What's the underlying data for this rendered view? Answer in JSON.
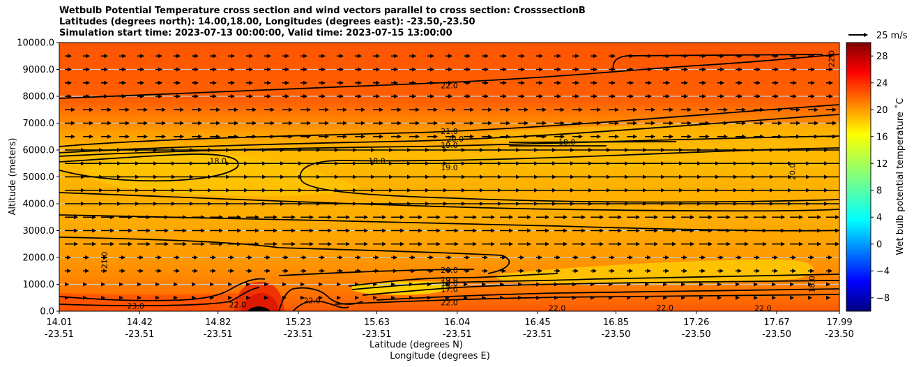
{
  "chart_data": {
    "type": "heatmap",
    "title_lines": [
      "Wetbulb Potential Temperature cross section and wind vectors parallel to cross section: CrosssectionB",
      "Latitudes (degrees north): 14.00,18.00, Longitudes (degrees east): -23.50,-23.50",
      "Simulation start time: 2023-07-13 00:00:00, Valid time: 2023-07-15 13:00:00"
    ],
    "xlabel": "Latitude (degrees N)",
    "xlabel2": "Longitude (degrees E)",
    "ylabel": "Altitude (meters)",
    "ylim": [
      0,
      10000
    ],
    "xlim": [
      14.01,
      17.99
    ],
    "y_ticks": [
      "0.0",
      "1000.0",
      "2000.0",
      "3000.0",
      "4000.0",
      "5000.0",
      "6000.0",
      "7000.0",
      "8000.0",
      "9000.0",
      "10000.0"
    ],
    "y_tick_values": [
      0,
      1000,
      2000,
      3000,
      4000,
      5000,
      6000,
      7000,
      8000,
      9000,
      10000
    ],
    "x_ticks": [
      {
        "lat": "14.01",
        "lon": "-23.51",
        "v": 14.01
      },
      {
        "lat": "14.42",
        "lon": "-23.51",
        "v": 14.42
      },
      {
        "lat": "14.82",
        "lon": "-23.51",
        "v": 14.82
      },
      {
        "lat": "15.23",
        "lon": "-23.51",
        "v": 15.23
      },
      {
        "lat": "15.63",
        "lon": "-23.51",
        "v": 15.63
      },
      {
        "lat": "16.04",
        "lon": "-23.51",
        "v": 16.04
      },
      {
        "lat": "16.45",
        "lon": "-23.51",
        "v": 16.45
      },
      {
        "lat": "16.85",
        "lon": "-23.50",
        "v": 16.85
      },
      {
        "lat": "17.26",
        "lon": "-23.50",
        "v": 17.26
      },
      {
        "lat": "17.67",
        "lon": "-23.50",
        "v": 17.67
      },
      {
        "lat": "17.99",
        "lon": "-23.50",
        "v": 17.99
      }
    ],
    "colorbar": {
      "label": "Wet bulb potential temperature ˚C",
      "range": [
        -10,
        30
      ],
      "ticks": [
        "−8",
        "−4",
        "0",
        "4",
        "8",
        "12",
        "16",
        "20",
        "24",
        "28"
      ],
      "tick_values": [
        -8,
        -4,
        0,
        4,
        8,
        12,
        16,
        20,
        24,
        28
      ],
      "colormap": "jet"
    },
    "wind_key": "25 m/s",
    "contour_labels": [
      {
        "text": "22.0",
        "x": 16.0,
        "y": 8400
      },
      {
        "text": "21.0",
        "x": 16.0,
        "y": 6700
      },
      {
        "text": "20.0",
        "x": 16.03,
        "y": 6420
      },
      {
        "text": "19.0",
        "x": 16.0,
        "y": 6180
      },
      {
        "text": "19.0",
        "x": 16.0,
        "y": 5350
      },
      {
        "text": "18.0",
        "x": 14.82,
        "y": 5600
      },
      {
        "text": "18.0",
        "x": 15.63,
        "y": 5600
      },
      {
        "text": "18.0",
        "x": 16.6,
        "y": 6300
      },
      {
        "text": "20.0",
        "x": 17.75,
        "y": 5200
      },
      {
        "text": "22.0",
        "x": 17.95,
        "y": 9400
      },
      {
        "text": "21.0",
        "x": 14.24,
        "y": 1900
      },
      {
        "text": "20.0",
        "x": 16.0,
        "y": 1530
      },
      {
        "text": "19.0",
        "x": 16.0,
        "y": 1170
      },
      {
        "text": "18.0",
        "x": 16.0,
        "y": 1040
      },
      {
        "text": "17.0",
        "x": 16.0,
        "y": 820
      },
      {
        "text": "22.0",
        "x": 16.0,
        "y": 320
      },
      {
        "text": "18.0",
        "x": 17.85,
        "y": 1000
      },
      {
        "text": "23.0",
        "x": 14.4,
        "y": 200
      },
      {
        "text": "22.0",
        "x": 14.92,
        "y": 250
      },
      {
        "text": "22.0",
        "x": 15.3,
        "y": 400
      },
      {
        "text": "22.0",
        "x": 16.55,
        "y": 120
      },
      {
        "text": "22.0",
        "x": 17.1,
        "y": 130
      },
      {
        "text": "22.0",
        "x": 17.6,
        "y": 120
      }
    ]
  }
}
